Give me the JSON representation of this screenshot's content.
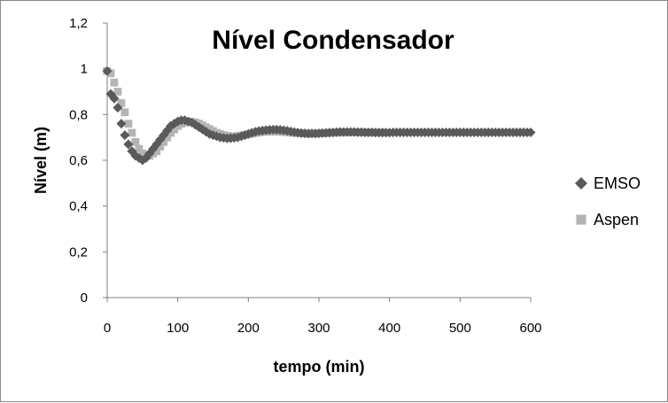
{
  "chart_data": {
    "type": "scatter",
    "title": "Nível Condensador",
    "xlabel": "tempo (min)",
    "ylabel": "Nível (m)",
    "xlim": [
      0,
      600
    ],
    "ylim": [
      0,
      1.2
    ],
    "x_ticks": [
      "0",
      "100",
      "200",
      "300",
      "400",
      "500",
      "600"
    ],
    "y_ticks": [
      "0",
      "0,2",
      "0,4",
      "0,6",
      "0,8",
      "1",
      "1,2"
    ],
    "grid": false,
    "legend_position": "right",
    "series": [
      {
        "name": "EMSO",
        "marker": "diamond",
        "color": "#5a5a5a",
        "x": [
          0,
          5,
          10,
          15,
          20,
          25,
          30,
          35,
          40,
          45,
          50,
          55,
          60,
          65,
          70,
          75,
          80,
          85,
          90,
          95,
          100,
          105,
          110,
          115,
          120,
          125,
          130,
          135,
          140,
          145,
          150,
          155,
          160,
          165,
          170,
          175,
          180,
          185,
          190,
          195,
          200,
          205,
          210,
          215,
          220,
          225,
          230,
          235,
          240,
          245,
          250,
          255,
          260,
          265,
          270,
          275,
          280,
          285,
          290,
          295,
          300,
          305,
          310,
          315,
          320,
          325,
          330,
          335,
          340,
          345,
          350,
          355,
          360,
          365,
          370,
          375,
          380,
          385,
          390,
          395,
          400,
          405,
          410,
          415,
          420,
          425,
          430,
          435,
          440,
          445,
          450,
          455,
          460,
          465,
          470,
          475,
          480,
          485,
          490,
          495,
          500,
          505,
          510,
          515,
          520,
          525,
          530,
          535,
          540,
          545,
          550,
          555,
          560,
          565,
          570,
          575,
          580,
          585,
          590,
          595,
          600
        ],
        "y": [
          0.99,
          0.89,
          0.87,
          0.83,
          0.76,
          0.71,
          0.67,
          0.64,
          0.62,
          0.61,
          0.6,
          0.61,
          0.63,
          0.65,
          0.67,
          0.69,
          0.71,
          0.73,
          0.75,
          0.76,
          0.77,
          0.775,
          0.775,
          0.77,
          0.765,
          0.755,
          0.745,
          0.735,
          0.725,
          0.715,
          0.71,
          0.705,
          0.7,
          0.698,
          0.696,
          0.697,
          0.698,
          0.7,
          0.705,
          0.71,
          0.715,
          0.72,
          0.725,
          0.728,
          0.73,
          0.732,
          0.733,
          0.734,
          0.734,
          0.733,
          0.731,
          0.729,
          0.726,
          0.723,
          0.721,
          0.719,
          0.718,
          0.717,
          0.717,
          0.717,
          0.718,
          0.719,
          0.72,
          0.721,
          0.722,
          0.723,
          0.724,
          0.724,
          0.724,
          0.724,
          0.724,
          0.723,
          0.723,
          0.722,
          0.722,
          0.722,
          0.721,
          0.721,
          0.721,
          0.721,
          0.721,
          0.722,
          0.722,
          0.722,
          0.722,
          0.722,
          0.722,
          0.722,
          0.722,
          0.722,
          0.722,
          0.722,
          0.722,
          0.722,
          0.722,
          0.722,
          0.722,
          0.722,
          0.722,
          0.722,
          0.722,
          0.722,
          0.722,
          0.722,
          0.722,
          0.722,
          0.722,
          0.722,
          0.722,
          0.722,
          0.722,
          0.722,
          0.722,
          0.722,
          0.722,
          0.722,
          0.722,
          0.722,
          0.722,
          0.722,
          0.722
        ]
      },
      {
        "name": "Aspen",
        "marker": "square",
        "color": "#b4b4b4",
        "x": [
          0,
          5,
          10,
          15,
          20,
          25,
          30,
          35,
          40,
          45,
          50,
          55,
          60,
          65,
          70,
          75,
          80,
          85,
          90,
          95,
          100,
          105,
          110,
          115,
          120,
          125,
          130,
          135,
          140,
          145,
          150,
          155,
          160,
          165,
          170,
          175,
          180,
          185,
          190,
          195,
          200,
          205,
          210,
          215,
          220,
          225,
          230,
          235,
          240,
          245,
          250,
          255,
          260,
          265,
          270,
          275,
          280,
          285,
          290,
          295,
          300,
          305,
          310,
          315,
          320,
          325,
          330,
          335,
          340,
          345,
          350,
          355,
          360,
          365,
          370,
          375,
          380,
          385,
          390
        ],
        "y": [
          0.99,
          0.98,
          0.94,
          0.9,
          0.85,
          0.81,
          0.76,
          0.72,
          0.68,
          0.65,
          0.63,
          0.62,
          0.62,
          0.63,
          0.64,
          0.66,
          0.68,
          0.7,
          0.72,
          0.735,
          0.75,
          0.76,
          0.765,
          0.768,
          0.768,
          0.765,
          0.76,
          0.752,
          0.744,
          0.736,
          0.728,
          0.72,
          0.715,
          0.71,
          0.707,
          0.705,
          0.705,
          0.706,
          0.708,
          0.711,
          0.714,
          0.717,
          0.72,
          0.722,
          0.724,
          0.725,
          0.726,
          0.726,
          0.726,
          0.725,
          0.724,
          0.723,
          0.721,
          0.72,
          0.719,
          0.718,
          0.717,
          0.717,
          0.717,
          0.717,
          0.718,
          0.718,
          0.719,
          0.72,
          0.72,
          0.721,
          0.721,
          0.722,
          0.722,
          0.722,
          0.722,
          0.722,
          0.722,
          0.722,
          0.722,
          0.722,
          0.722,
          0.722,
          0.722
        ]
      }
    ]
  }
}
